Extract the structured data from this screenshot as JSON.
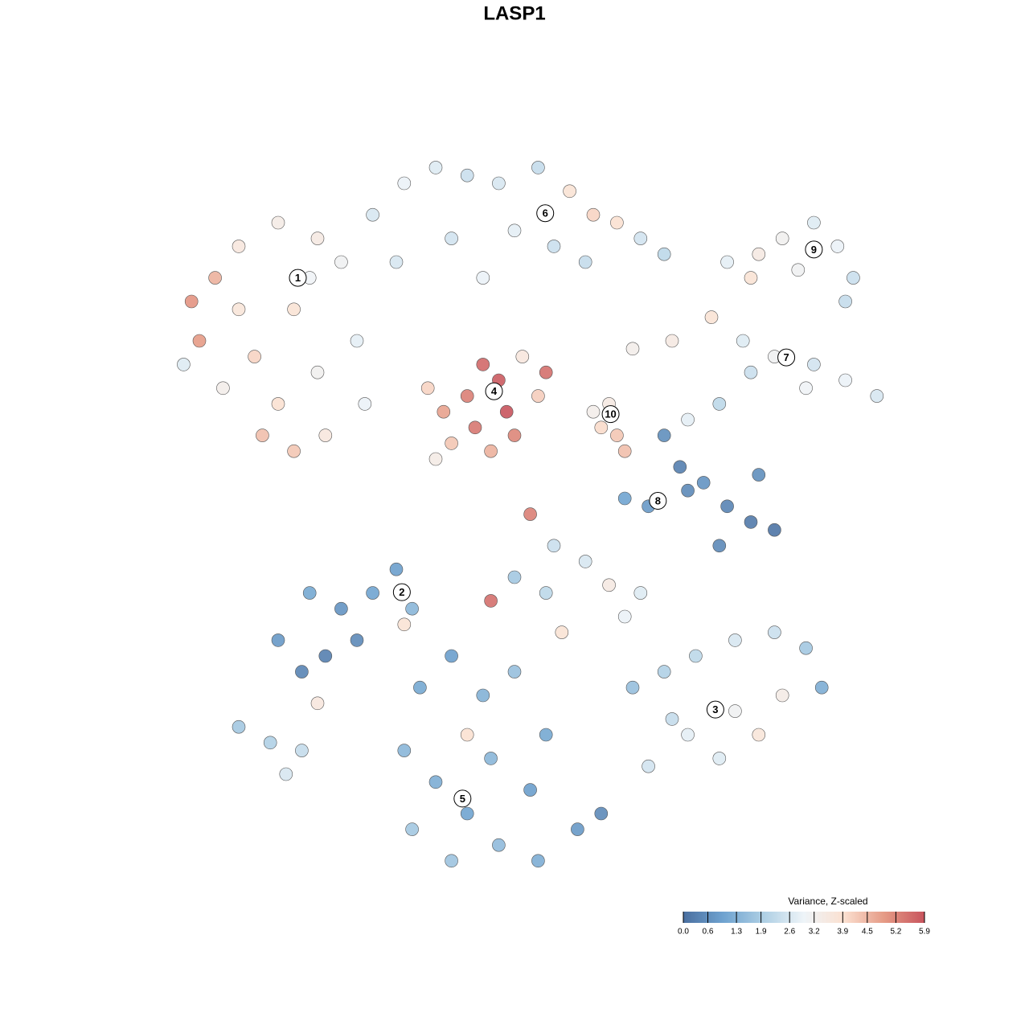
{
  "chart_data": {
    "type": "scatter",
    "title": "LASP1",
    "xlim": [
      -50,
      50
    ],
    "ylim": [
      -50,
      50
    ],
    "x": [
      -40,
      -41,
      -38,
      -35,
      -30,
      -25,
      -22,
      -28,
      -33,
      -37,
      -30,
      -25,
      -20,
      -28,
      -24,
      -32,
      -19,
      -26,
      -35,
      -42,
      -18,
      -14,
      -10,
      -6,
      -2,
      3,
      7,
      10,
      13,
      16,
      19,
      0,
      -8,
      -15,
      5,
      -4,
      9,
      -4,
      -2,
      -6,
      -1,
      -5,
      -9,
      -11,
      0,
      -3,
      3,
      -8,
      -10,
      1,
      4,
      12,
      13,
      11,
      14,
      10,
      15,
      20,
      25,
      29,
      33,
      38,
      42,
      46,
      37,
      26,
      22,
      30,
      27,
      31,
      34,
      38,
      41,
      43,
      30,
      36,
      42,
      19,
      21,
      22,
      27,
      30,
      33,
      26,
      24,
      14,
      17,
      31,
      -30,
      -27,
      -24,
      -22,
      -18,
      -15,
      -13,
      -26,
      -20,
      -25,
      -14,
      -12,
      -8,
      -4,
      0,
      -14,
      -10,
      -6,
      -2,
      3,
      8,
      11,
      -13,
      -8,
      4,
      -3,
      2,
      -6,
      0,
      4,
      9,
      12,
      14,
      6,
      -3,
      2,
      5,
      16,
      15,
      19,
      23,
      28,
      33,
      37,
      39,
      34,
      28,
      22,
      17,
      26,
      31,
      20,
      -35,
      -31,
      -27,
      -29
    ],
    "y": [
      20,
      25,
      28,
      32,
      35,
      33,
      30,
      24,
      18,
      14,
      12,
      16,
      20,
      6,
      8,
      8,
      12,
      28,
      24,
      17,
      36,
      40,
      42,
      41,
      40,
      42,
      39,
      36,
      35,
      33,
      31,
      34,
      33,
      30,
      32,
      28,
      30,
      17,
      15,
      13,
      11,
      9,
      11,
      14,
      8,
      6,
      13,
      7,
      5,
      18,
      16,
      12,
      8,
      9,
      6,
      11,
      19,
      20,
      23,
      20,
      18,
      17,
      15,
      13,
      14,
      12,
      10,
      16,
      30,
      31,
      33,
      35,
      32,
      28,
      28,
      29,
      25,
      8,
      4,
      1,
      -1,
      -3,
      -4,
      -6,
      2,
      0,
      -1,
      3,
      -18,
      -22,
      -20,
      -14,
      -12,
      -9,
      -14,
      -12,
      -18,
      -26,
      -16,
      -24,
      -20,
      -25,
      -22,
      -32,
      -36,
      -40,
      -44,
      -46,
      -42,
      -40,
      -42,
      -46,
      -30,
      -33,
      -37,
      -30,
      -10,
      -12,
      -8,
      -11,
      -15,
      -17,
      -13,
      -2,
      -6,
      -12,
      -24,
      -22,
      -20,
      -18,
      -17,
      -19,
      -24,
      -25,
      -27,
      -30,
      -34,
      -33,
      -30,
      -28,
      -29,
      -31,
      -32,
      -35
    ],
    "values": [
      4.9,
      5.0,
      4.6,
      3.6,
      3.4,
      3.5,
      3.1,
      3.8,
      4.1,
      3.3,
      3.9,
      3.2,
      2.8,
      4.3,
      3.6,
      4.4,
      2.9,
      3.0,
      3.7,
      2.7,
      2.6,
      2.9,
      2.7,
      2.4,
      2.6,
      2.3,
      3.8,
      4.1,
      3.9,
      2.5,
      2.2,
      2.8,
      2.5,
      2.6,
      2.4,
      2.9,
      2.3,
      5.6,
      5.8,
      5.3,
      5.9,
      5.4,
      4.8,
      4.1,
      5.2,
      4.6,
      4.2,
      4.3,
      3.4,
      3.6,
      5.5,
      3.5,
      4.3,
      4.0,
      4.4,
      3.3,
      3.3,
      3.5,
      3.8,
      2.7,
      3.1,
      2.5,
      2.9,
      2.6,
      3.0,
      2.2,
      2.8,
      2.4,
      2.8,
      3.5,
      3.2,
      2.7,
      2.9,
      2.4,
      3.8,
      3.1,
      2.3,
      0.6,
      0.3,
      0.5,
      0.4,
      0.2,
      0.1,
      0.5,
      0.7,
      1.0,
      0.8,
      0.6,
      0.8,
      0.4,
      0.3,
      0.7,
      1.0,
      0.9,
      1.4,
      1.1,
      0.5,
      3.6,
      3.8,
      1.1,
      0.9,
      1.3,
      1.6,
      1.4,
      1.2,
      1.0,
      1.5,
      1.2,
      0.8,
      0.5,
      1.8,
      1.7,
      1.1,
      1.4,
      0.9,
      3.9,
      1.8,
      2.2,
      2.6,
      3.5,
      2.9,
      3.8,
      5.5,
      5.3,
      2.4,
      2.7,
      1.6,
      2.0,
      2.2,
      2.6,
      2.4,
      1.8,
      1.2,
      3.4,
      3.1,
      2.8,
      2.5,
      2.7,
      3.7,
      2.3,
      1.8,
      2.0,
      2.3,
      2.6
    ],
    "annotations": [
      {
        "text": "1",
        "x": -27.5,
        "y": 28
      },
      {
        "text": "2",
        "x": -14.3,
        "y": -11.9
      },
      {
        "text": "3",
        "x": 25.5,
        "y": -26.8
      },
      {
        "text": "4",
        "x": -2.6,
        "y": 13.6
      },
      {
        "text": "5",
        "x": -6.6,
        "y": -38.1
      },
      {
        "text": "6",
        "x": 3.9,
        "y": 36.2
      },
      {
        "text": "7",
        "x": 34.5,
        "y": 17.9
      },
      {
        "text": "8",
        "x": 18.2,
        "y": -0.3
      },
      {
        "text": "9",
        "x": 38,
        "y": 31.6
      },
      {
        "text": "10",
        "x": 12.2,
        "y": 10.7
      }
    ],
    "colorbar": {
      "title": "Variance, Z-scaled",
      "lim": [
        0,
        5.9
      ],
      "colors": [
        "#4a6fa0",
        "#6fa3d0",
        "#aecfe4",
        "#eef4f8",
        "#fbe0d0",
        "#e59a85",
        "#c8545d"
      ],
      "ticks": [
        {
          "value": 0,
          "label": "0.0"
        },
        0.6,
        1.3,
        1.9,
        2.6,
        3.2,
        3.9,
        4.5,
        5.2,
        5.9
      ]
    }
  }
}
